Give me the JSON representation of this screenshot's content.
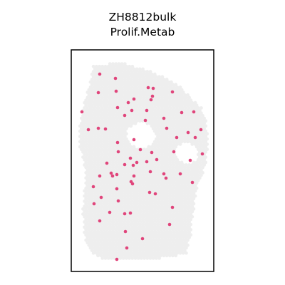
{
  "title": [
    "ZH8812bulk",
    "Prolif.Metab"
  ],
  "colors": {
    "tissue": "#eeeeee",
    "highlight": "#e0457b",
    "frame": "#000000"
  },
  "chart_data": {
    "type": "scatter",
    "title": "ZH8812bulk Prolif.Metab",
    "xlabel": "",
    "ylabel": "",
    "grid": false,
    "legend": "none",
    "series": [
      {
        "points": [
          [
            140,
            104
          ],
          [
            162,
            110
          ],
          [
            208,
            123
          ],
          [
            215,
            124
          ],
          [
            163,
            128
          ],
          [
            138,
            130
          ],
          [
            242,
            129
          ],
          [
            214,
            135
          ],
          [
            212,
            140
          ],
          [
            188,
            139
          ],
          [
            180,
            144
          ],
          [
            165,
            151
          ],
          [
            185,
            155
          ],
          [
            206,
            155
          ],
          [
            115,
            157
          ],
          [
            255,
            158
          ],
          [
            272,
            157
          ],
          [
            175,
            162
          ],
          [
            230,
            166
          ],
          [
            204,
            169
          ],
          [
            124,
            182
          ],
          [
            138,
            180
          ],
          [
            148,
            181
          ],
          [
            234,
            180
          ],
          [
            282,
            182
          ],
          [
            264,
            186
          ],
          [
            248,
            193
          ],
          [
            274,
            193
          ],
          [
            188,
            196
          ],
          [
            165,
            200
          ],
          [
            244,
            213
          ],
          [
            166,
            213
          ],
          [
            284,
            216
          ],
          [
            213,
            214
          ],
          [
            197,
            210
          ],
          [
            220,
            224
          ],
          [
            183,
            222
          ],
          [
            175,
            231
          ],
          [
            150,
            229
          ],
          [
            206,
            227
          ],
          [
            192,
            228
          ],
          [
            140,
            247
          ],
          [
            187,
            232
          ],
          [
            267,
            225
          ],
          [
            156,
            243
          ],
          [
            158,
            247
          ],
          [
            211,
            241
          ],
          [
            164,
            245
          ],
          [
            230,
            244
          ],
          [
            188,
            247
          ],
          [
            253,
            244
          ],
          [
            233,
            250
          ],
          [
            184,
            255
          ],
          [
            210,
            270
          ],
          [
            131,
            262
          ],
          [
            164,
            265
          ],
          [
            186,
            258
          ],
          [
            270,
            256
          ],
          [
            218,
            272
          ],
          [
            142,
            277
          ],
          [
            132,
            286
          ],
          [
            166,
            282
          ],
          [
            242,
            291
          ],
          [
            175,
            300
          ],
          [
            183,
            299
          ],
          [
            154,
            298
          ],
          [
            140,
            310
          ],
          [
            238,
            315
          ],
          [
            176,
            325
          ],
          [
            178,
            348
          ],
          [
            164,
            364
          ],
          [
            200,
            335
          ]
        ]
      }
    ]
  }
}
